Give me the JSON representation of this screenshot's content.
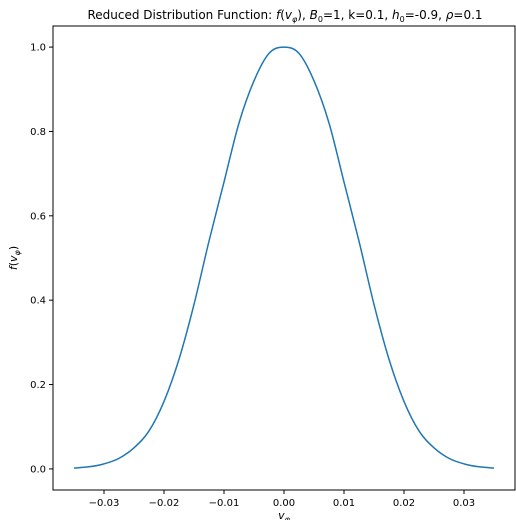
{
  "chart_data": {
    "type": "line",
    "title_parts": {
      "lead": "Reduced Distribution Function: ",
      "f": "f",
      "lparen": "(",
      "v": "v",
      "phi_sub": "φ",
      "rparen_b": "), ",
      "B": "B",
      "B_sub": "0",
      "b_val": "=1, k=0.1, ",
      "h": "h",
      "h_sub": "0",
      "h_val": "=-0.9, ",
      "rho": "ρ",
      "rho_val": "=0.1"
    },
    "xlabel_parts": {
      "v": "v",
      "sub": "φ"
    },
    "ylabel_parts": {
      "f": "f",
      "lparen": "(",
      "v": "v",
      "sub": "φ",
      "rparen": ")"
    },
    "xlim": [
      -0.0385,
      0.0385
    ],
    "ylim": [
      -0.05,
      1.05
    ],
    "xticks": [
      -0.03,
      -0.02,
      -0.01,
      0.0,
      0.01,
      0.02,
      0.03
    ],
    "xtick_labels": [
      "−0.03",
      "−0.02",
      "−0.01",
      "0.00",
      "0.01",
      "0.02",
      "0.03"
    ],
    "yticks": [
      0.0,
      0.2,
      0.4,
      0.6,
      0.8,
      1.0
    ],
    "ytick_labels": [
      "0.0",
      "0.2",
      "0.4",
      "0.6",
      "0.8",
      "1.0"
    ],
    "grid": false,
    "series": [
      {
        "color": "#1f77b4",
        "x": [
          -0.035,
          -0.0325,
          -0.03,
          -0.0275,
          -0.025,
          -0.0225,
          -0.02,
          -0.0175,
          -0.015,
          -0.0125,
          -0.01,
          -0.0075,
          -0.005,
          -0.0025,
          0.0,
          0.0025,
          0.005,
          0.0075,
          0.01,
          0.0125,
          0.015,
          0.0175,
          0.02,
          0.0225,
          0.025,
          0.0275,
          0.03,
          0.0325,
          0.035
        ],
        "y": [
          0.002,
          0.005,
          0.012,
          0.025,
          0.05,
          0.09,
          0.16,
          0.26,
          0.39,
          0.54,
          0.68,
          0.82,
          0.92,
          0.985,
          1.0,
          0.985,
          0.92,
          0.82,
          0.68,
          0.54,
          0.39,
          0.26,
          0.16,
          0.09,
          0.05,
          0.025,
          0.012,
          0.005,
          0.002
        ]
      }
    ]
  }
}
